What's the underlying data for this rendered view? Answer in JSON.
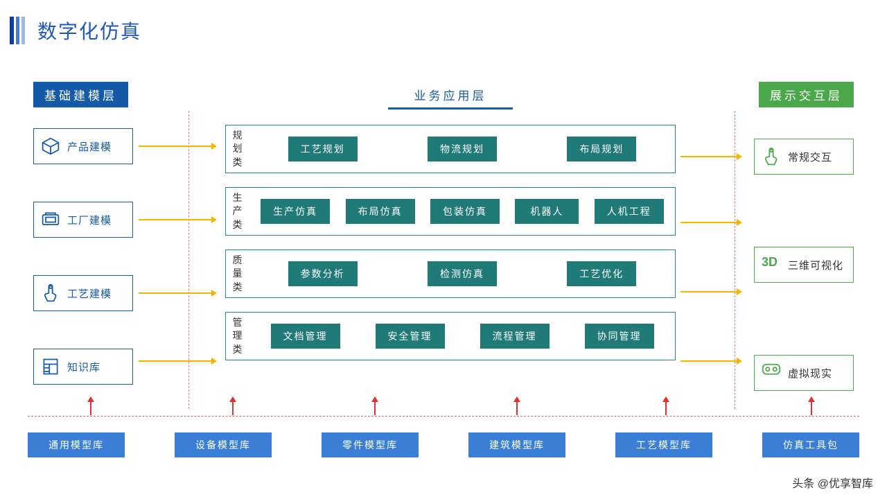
{
  "title": "数字化仿真",
  "layers": {
    "left": "基础建模层",
    "mid": "业务应用层",
    "right": "展示交互层"
  },
  "left_modules": [
    {
      "label": "产品建模",
      "icon": "cube"
    },
    {
      "label": "工厂建模",
      "icon": "factory"
    },
    {
      "label": "工艺建模",
      "icon": "touch"
    },
    {
      "label": "知识库",
      "icon": "doc"
    }
  ],
  "right_modules": [
    {
      "label": "常规交互",
      "icon": "touch-g"
    },
    {
      "label": "三维可视化",
      "icon": "3d"
    },
    {
      "label": "虚拟现实",
      "icon": "vr"
    }
  ],
  "mid_groups": [
    {
      "label": "规划类",
      "items": [
        "工艺规划",
        "物流规划",
        "布局规划"
      ]
    },
    {
      "label": "生产类",
      "items": [
        "生产仿真",
        "布局仿真",
        "包装仿真",
        "机器人",
        "人机工程"
      ]
    },
    {
      "label": "质量类",
      "items": [
        "参数分析",
        "检测仿真",
        "工艺优化"
      ]
    },
    {
      "label": "管理类",
      "items": [
        "文档管理",
        "安全管理",
        "流程管理",
        "协同管理"
      ]
    }
  ],
  "bottom_libs": [
    "通用模型库",
    "设备模型库",
    "零件模型库",
    "建筑模型库",
    "工艺模型库",
    "仿真工具包"
  ],
  "watermark": "头条 @优享智库",
  "colors": {
    "blue": "#155aa9",
    "teal": "#1f7a78",
    "green": "#4aa84a",
    "yellow": "#f4b400",
    "red": "#e05a5a",
    "libblue": "#3a7fd5"
  }
}
